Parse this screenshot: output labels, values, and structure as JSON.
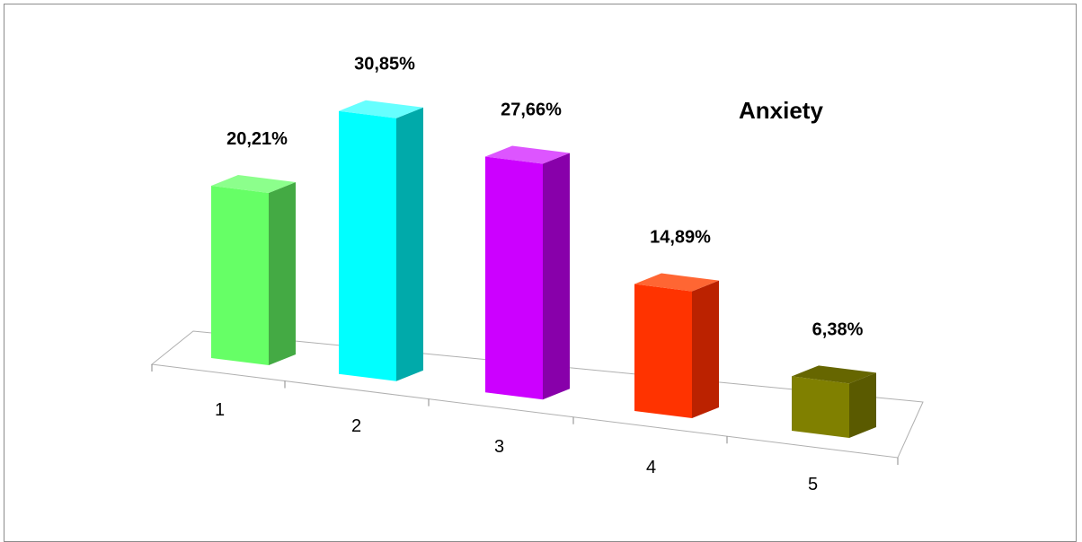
{
  "chart_data": {
    "type": "bar",
    "title": "Anxiety",
    "categories": [
      "1",
      "2",
      "3",
      "4",
      "5"
    ],
    "values": [
      20.21,
      30.85,
      27.66,
      14.89,
      6.38
    ],
    "value_labels": [
      "20,21%",
      "30,85%",
      "27,66%",
      "14,89%",
      "6,38%"
    ],
    "unit": "%",
    "xlabel": "",
    "ylabel": "",
    "grid": false,
    "legend": "none",
    "three_d": true,
    "colors": [
      {
        "front": "#66ff66",
        "side": "#44aa44",
        "top": "#8cff8c"
      },
      {
        "front": "#00ffff",
        "side": "#00aaaa",
        "top": "#66ffff"
      },
      {
        "front": "#cc00ff",
        "side": "#8800aa",
        "top": "#dd55ff"
      },
      {
        "front": "#ff3300",
        "side": "#bb2200",
        "top": "#ff6633"
      },
      {
        "front": "#808000",
        "side": "#5a5a00",
        "top": "#666600"
      }
    ]
  }
}
